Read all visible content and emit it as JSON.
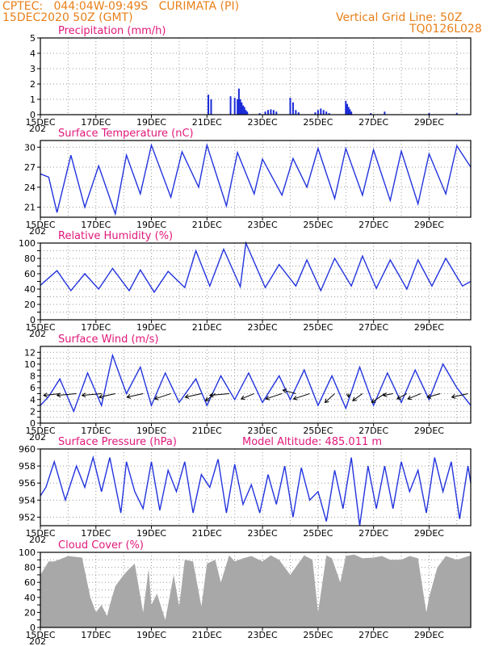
{
  "header": {
    "line1_left": "CPTEC:   044:04W-09:49S   CURIMATA (PI)",
    "line2_left": "15DEC2020 50Z (GMT)",
    "line2_right": "Vertical Grid Line: 50Z",
    "line3_right": "TQ0126L028"
  },
  "colors": {
    "header": "#e8801a",
    "title": "#e0187a",
    "line": "#2233dd",
    "bar": "#1a2bd8",
    "cloud": "#a8a8a8",
    "wind_arrow": "#000000"
  },
  "x_axis": {
    "range_days": [
      15,
      30.5
    ],
    "ticks": [
      {
        "day": 15,
        "label": "15DEC"
      },
      {
        "day": 17,
        "label": "17DEC"
      },
      {
        "day": 19,
        "label": "19DEC"
      },
      {
        "day": 21,
        "label": "21DEC"
      },
      {
        "day": 23,
        "label": "23DEC"
      },
      {
        "day": 25,
        "label": "25DEC"
      },
      {
        "day": 27,
        "label": "27DEC"
      },
      {
        "day": 29,
        "label": "29DEC"
      }
    ],
    "clipped_year_label": "202"
  },
  "chart_data": [
    {
      "type": "bar",
      "title": "Precipitation (mm/h)",
      "ylim": [
        0,
        5
      ],
      "yticks": [
        0,
        1,
        2,
        3,
        4,
        5
      ],
      "grid": true,
      "series": [
        {
          "x": [
            21.05,
            21.15,
            21.85,
            22.0,
            22.1,
            22.15,
            22.2,
            22.25,
            22.3,
            22.35,
            22.4,
            22.45,
            22.9,
            23.1,
            23.2,
            23.3,
            23.4,
            23.5,
            24.0,
            24.1,
            24.2,
            24.3,
            24.9,
            25.0,
            25.1,
            25.2,
            25.3,
            25.4,
            26.0,
            26.05,
            26.1,
            26.15,
            26.2,
            26.9,
            27.4,
            29.0,
            30.0
          ],
          "values": [
            1.3,
            1.0,
            1.2,
            1.1,
            1.0,
            1.7,
            1.0,
            0.8,
            0.6,
            0.5,
            0.3,
            0.2,
            0.1,
            0.2,
            0.3,
            0.35,
            0.3,
            0.2,
            1.1,
            0.8,
            0.3,
            0.15,
            0.15,
            0.3,
            0.4,
            0.3,
            0.2,
            0.1,
            0.9,
            0.7,
            0.5,
            0.35,
            0.2,
            0.1,
            0.2,
            0.1,
            0.1
          ]
        }
      ]
    },
    {
      "type": "line",
      "title": "Surface Temperature (nC)",
      "ylim": [
        19.5,
        31
      ],
      "yticks": [
        21,
        24,
        27,
        30
      ],
      "grid": true,
      "series": [
        {
          "x": [
            15.0,
            15.3,
            15.6,
            16.1,
            16.6,
            17.1,
            17.7,
            18.1,
            18.6,
            19.0,
            19.7,
            20.1,
            20.7,
            21.0,
            21.7,
            22.1,
            22.7,
            23.0,
            23.7,
            24.1,
            24.6,
            25.0,
            25.6,
            26.0,
            26.6,
            27.0,
            27.6,
            28.0,
            28.6,
            29.0,
            29.6,
            30.0,
            30.5
          ],
          "values": [
            26.0,
            25.5,
            20.2,
            28.8,
            21.0,
            27.2,
            20.0,
            28.8,
            23.0,
            30.3,
            22.5,
            29.3,
            24.0,
            30.3,
            21.2,
            29.2,
            23.0,
            28.2,
            22.8,
            28.3,
            24.0,
            29.8,
            22.3,
            29.8,
            22.8,
            29.6,
            22.0,
            29.4,
            21.5,
            29.0,
            23.0,
            30.2,
            27.0
          ]
        }
      ]
    },
    {
      "type": "line",
      "title": "Relative Humidity (%)",
      "ylim": [
        0,
        100
      ],
      "yticks": [
        0,
        10,
        20,
        30,
        40,
        50,
        60,
        70,
        80,
        90,
        100
      ],
      "ytick_labels": [
        0,
        20,
        40,
        60,
        80,
        100
      ],
      "grid": true,
      "series": [
        {
          "x": [
            15.0,
            15.6,
            16.1,
            16.6,
            17.1,
            17.6,
            18.2,
            18.6,
            19.1,
            19.6,
            20.2,
            20.6,
            21.1,
            21.6,
            22.2,
            22.4,
            23.1,
            23.6,
            24.2,
            24.6,
            25.1,
            25.6,
            26.2,
            26.6,
            27.1,
            27.6,
            28.2,
            28.6,
            29.1,
            29.6,
            30.2,
            30.5
          ],
          "values": [
            45,
            64,
            38,
            60,
            40,
            67,
            38,
            65,
            36,
            63,
            42,
            90,
            44,
            92,
            43,
            100,
            42,
            72,
            44,
            78,
            38,
            80,
            44,
            83,
            41,
            78,
            40,
            78,
            44,
            80,
            44,
            50
          ]
        }
      ]
    },
    {
      "type": "line",
      "title": "Surface Wind (m/s)",
      "ylim": [
        0,
        13
      ],
      "yticks": [
        0,
        1,
        2,
        3,
        4,
        5,
        6,
        7,
        8,
        9,
        10,
        11,
        12
      ],
      "ytick_labels": [
        0,
        2,
        4,
        6,
        8,
        10,
        12
      ],
      "grid": true,
      "series": [
        {
          "x": [
            15.0,
            15.3,
            15.7,
            16.2,
            16.7,
            17.2,
            17.6,
            18.1,
            18.6,
            19.0,
            19.5,
            20.0,
            20.6,
            21.0,
            21.5,
            22.0,
            22.5,
            23.0,
            23.6,
            24.0,
            24.5,
            25.0,
            25.5,
            26.0,
            26.5,
            27.0,
            27.5,
            28.0,
            28.5,
            29.0,
            29.5,
            30.0,
            30.5
          ],
          "values": [
            3.0,
            4.5,
            7.5,
            2.0,
            8.5,
            3.0,
            11.5,
            5.0,
            9.5,
            3.0,
            8.5,
            3.5,
            7.5,
            3.0,
            8.0,
            4.0,
            8.5,
            3.5,
            8.0,
            4.0,
            9.0,
            3.0,
            8.0,
            2.5,
            9.5,
            3.0,
            8.5,
            3.5,
            9.0,
            4.0,
            10.0,
            6.0,
            3.0
          ]
        }
      ],
      "wind_vectors": [
        {
          "day": 15.7,
          "u": -5,
          "v": -1
        },
        {
          "day": 16.3,
          "u": -6,
          "v": -1
        },
        {
          "day": 17.2,
          "u": -6,
          "v": -1
        },
        {
          "day": 17.7,
          "u": -5,
          "v": -2
        },
        {
          "day": 18.7,
          "u": -5,
          "v": -2
        },
        {
          "day": 19.7,
          "u": -5,
          "v": -3
        },
        {
          "day": 20.8,
          "u": -5,
          "v": -2
        },
        {
          "day": 21.3,
          "u": -3,
          "v": -4
        },
        {
          "day": 21.8,
          "u": -6,
          "v": -1
        },
        {
          "day": 22.7,
          "u": -4,
          "v": -3
        },
        {
          "day": 23.7,
          "u": -5,
          "v": -3
        },
        {
          "day": 24.2,
          "u": -4,
          "v": 2
        },
        {
          "day": 24.7,
          "u": -5,
          "v": -3
        },
        {
          "day": 25.6,
          "u": -3,
          "v": -5
        },
        {
          "day": 26.1,
          "u": 0,
          "v": -2
        },
        {
          "day": 26.6,
          "u": -3,
          "v": -4
        },
        {
          "day": 27.4,
          "u": -4,
          "v": -5
        },
        {
          "day": 27.7,
          "u": -3,
          "v": -1
        },
        {
          "day": 28.2,
          "u": -3,
          "v": -3
        },
        {
          "day": 28.7,
          "u": -4,
          "v": -3
        },
        {
          "day": 29.4,
          "u": -4,
          "v": -2
        },
        {
          "day": 30.4,
          "u": -5,
          "v": -2
        }
      ]
    },
    {
      "type": "line",
      "title": "Surface Pressure (hPa)",
      "annotation": "Model Altitude: 485.011  m",
      "ylim": [
        951,
        960
      ],
      "yticks": [
        952,
        954,
        956,
        958,
        960
      ],
      "grid": true,
      "series": [
        {
          "x": [
            15.0,
            15.2,
            15.5,
            15.9,
            16.3,
            16.6,
            16.9,
            17.2,
            17.5,
            17.9,
            18.1,
            18.4,
            18.7,
            19.0,
            19.3,
            19.6,
            19.9,
            20.2,
            20.5,
            20.8,
            21.1,
            21.4,
            21.7,
            22.0,
            22.3,
            22.6,
            22.9,
            23.2,
            23.5,
            23.8,
            24.1,
            24.4,
            24.7,
            25.0,
            25.3,
            25.6,
            25.9,
            26.2,
            26.5,
            26.8,
            27.1,
            27.4,
            27.7,
            28.0,
            28.3,
            28.6,
            28.9,
            29.2,
            29.5,
            29.8,
            30.1,
            30.4,
            30.5
          ],
          "values": [
            954.5,
            955.5,
            958.5,
            954.0,
            958.0,
            955.5,
            959.0,
            955.0,
            959.0,
            952.5,
            958.5,
            955.0,
            953.0,
            958.5,
            952.8,
            957.5,
            955.0,
            958.5,
            952.5,
            957.0,
            955.5,
            958.8,
            952.5,
            958.2,
            953.5,
            955.8,
            952.5,
            957.0,
            953.5,
            958.0,
            952.0,
            957.8,
            954.0,
            955.0,
            951.5,
            957.5,
            953.0,
            959.0,
            951.0,
            958.0,
            953.0,
            958.0,
            953.0,
            958.5,
            955.0,
            957.5,
            952.5,
            959.0,
            955.0,
            958.5,
            951.8,
            958.0,
            956.0
          ]
        }
      ]
    },
    {
      "type": "area",
      "title": "Cloud Cover (%)",
      "ylim": [
        0,
        100
      ],
      "yticks": [
        0,
        10,
        20,
        30,
        40,
        50,
        60,
        70,
        80,
        90,
        100
      ],
      "ytick_labels": [
        0,
        20,
        40,
        60,
        80,
        100
      ],
      "grid": true,
      "series": [
        {
          "x": [
            15.0,
            15.3,
            15.5,
            16.0,
            16.5,
            16.8,
            17.0,
            17.2,
            17.4,
            17.5,
            17.7,
            18.0,
            18.2,
            18.4,
            18.7,
            18.9,
            19.0,
            19.2,
            19.5,
            19.8,
            20.0,
            20.2,
            20.5,
            20.8,
            21.0,
            21.3,
            21.5,
            21.8,
            22.0,
            22.3,
            22.6,
            23.0,
            23.3,
            23.6,
            24.0,
            24.5,
            24.8,
            25.0,
            25.3,
            25.5,
            25.8,
            26.0,
            26.3,
            26.6,
            27.0,
            27.3,
            27.6,
            28.0,
            28.3,
            28.6,
            28.9,
            29.0,
            29.3,
            29.6,
            30.0,
            30.5
          ],
          "values": [
            70,
            88,
            88,
            95,
            93,
            40,
            20,
            30,
            15,
            30,
            55,
            70,
            78,
            85,
            20,
            78,
            30,
            45,
            10,
            70,
            28,
            90,
            88,
            28,
            85,
            90,
            60,
            96,
            88,
            92,
            95,
            88,
            96,
            90,
            70,
            96,
            90,
            20,
            96,
            92,
            60,
            95,
            97,
            92,
            93,
            95,
            90,
            90,
            95,
            92,
            20,
            40,
            80,
            95,
            90,
            96
          ]
        }
      ]
    }
  ]
}
